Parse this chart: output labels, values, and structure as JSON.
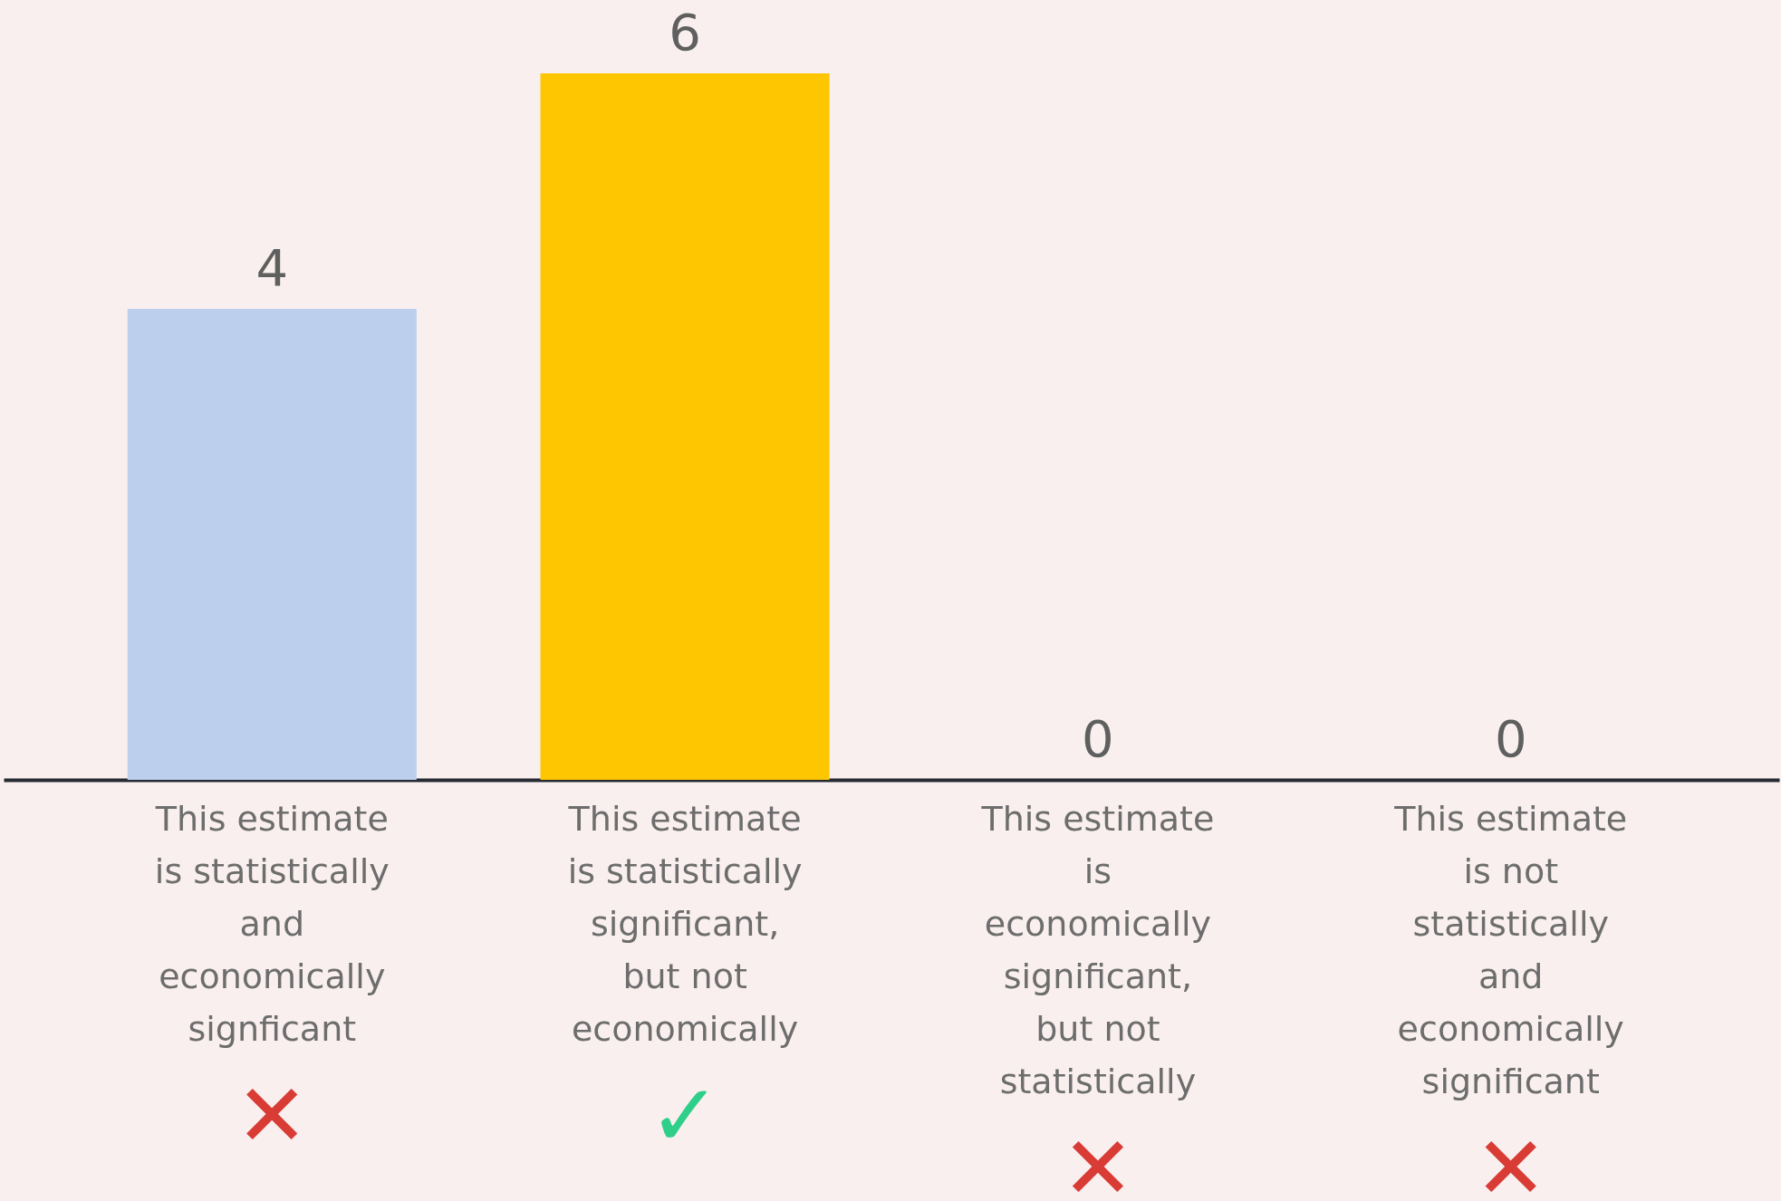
{
  "chart_data": {
    "type": "bar",
    "categories": [
      "This estimate\nis statistically\nand\neconomically\nsignficant",
      "This estimate\nis statistically\nsignificant,\nbut not\neconomically",
      "This estimate\nis\neconomically\nsignificant,\nbut not\nstatistically",
      "This estimate\nis not\nstatistically\nand\neconomically\nsignificant"
    ],
    "values": [
      4,
      6,
      0,
      0
    ],
    "colors": [
      "#bcd0ee",
      "#fec601",
      "#bcd0ee",
      "#bcd0ee"
    ],
    "data_labels": true,
    "tick_labels": "x",
    "annotations": [
      "✕",
      "✓",
      "✕",
      "✕"
    ]
  }
}
